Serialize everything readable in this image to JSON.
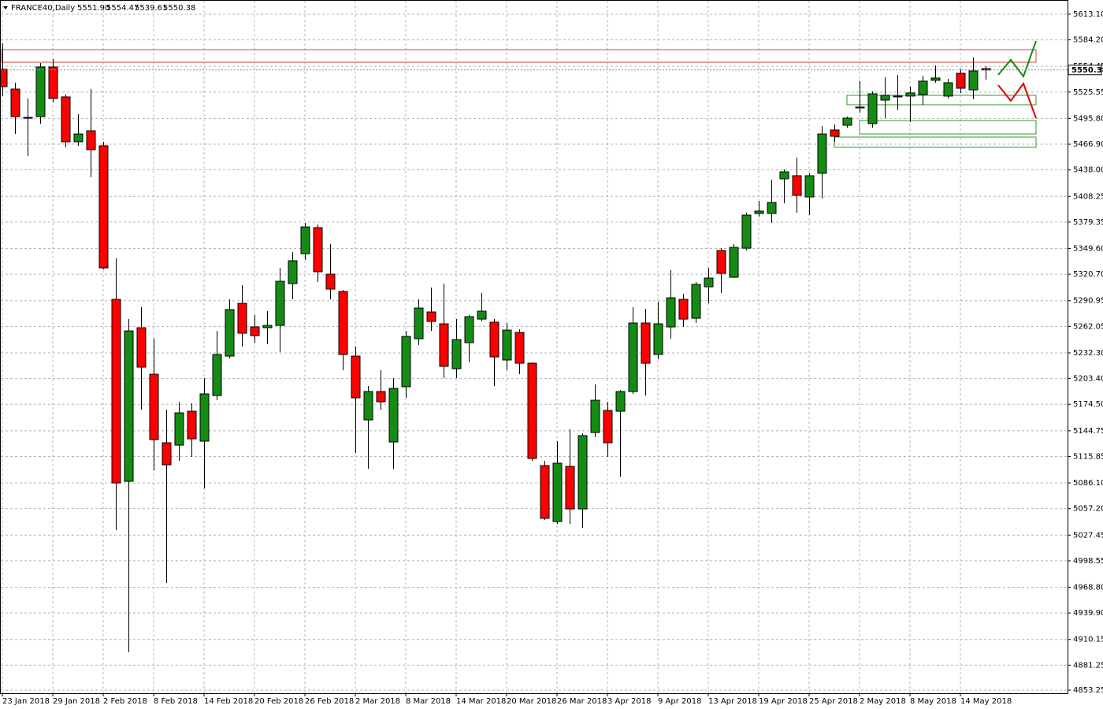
{
  "chart_data": {
    "type": "candlestick",
    "title": "FRANCE40,Daily",
    "header_ohlc": [
      "5551.90",
      "5554.47",
      "5539.61",
      "5550.38"
    ],
    "categories": [
      "23 Jan 2018",
      null,
      null,
      null,
      "29 Jan 2018",
      null,
      null,
      null,
      "2 Feb 2018",
      null,
      null,
      null,
      "8 Feb 2018",
      null,
      null,
      null,
      "14 Feb 2018",
      null,
      null,
      null,
      "20 Feb 2018",
      null,
      null,
      null,
      "26 Feb 2018",
      null,
      null,
      null,
      "2 Mar 2018",
      null,
      null,
      null,
      "8 Mar 2018",
      null,
      null,
      null,
      "14 Mar 2018",
      null,
      null,
      null,
      "20 Mar 2018",
      null,
      null,
      null,
      "26 Mar 2018",
      null,
      null,
      null,
      "3 Apr 2018",
      null,
      null,
      null,
      "9 Apr 2018",
      null,
      null,
      null,
      "13 Apr 2018",
      null,
      null,
      null,
      "19 Apr 2018",
      null,
      null,
      null,
      "25 Apr 2018",
      null,
      null,
      null,
      "2 May 2018",
      null,
      null,
      null,
      "8 May 2018",
      null,
      null,
      null,
      "14 May 2018",
      null,
      null
    ],
    "open": [
      5551.1,
      5528.9,
      5496.2,
      5497.9,
      5553.7,
      5520.1,
      5469.6,
      5482.0,
      5465.2,
      5292.5,
      5087.9,
      5260.6,
      5208.3,
      5131.3,
      5128.6,
      5166.7,
      5133.1,
      5184.4,
      5228.7,
      5288.0,
      5261.5,
      5260.6,
      5263.2,
      5310.2,
      5343.8,
      5373.1,
      5320.8,
      5301.3,
      5228.7,
      5157.0,
      5188.9,
      5132.2,
      5194.2,
      5248.2,
      5278.3,
      5265.0,
      5214.5,
      5243.8,
      5270.3,
      5266.8,
      5224.3,
      5255.3,
      5220.7,
      5105.6,
      5042.7,
      5104.7,
      5056.9,
      5142.8,
      5167.6,
      5166.7,
      5188.9,
      5265.9,
      5230.5,
      5261.5,
      5292.5,
      5271.2,
      5306.6,
      5347.4,
      5317.3,
      5350.0,
      5389.0,
      5389.0,
      5428.0,
      5431.5,
      5407.6,
      5434.2,
      5482.9,
      5488.2,
      5507.7,
      5490.0,
      5516.5,
      5520.1,
      5521.0,
      5522.7,
      5538.7,
      5521.0,
      5546.6,
      5528.0,
      5551.9
    ],
    "high": [
      5580.3,
      5536.0,
      5518.3,
      5558.2,
      5562.6,
      5522.7,
      5500.6,
      5528.9,
      5469.6,
      5338.5,
      5270.3,
      5283.6,
      5248.2,
      5168.5,
      5177.3,
      5175.6,
      5203.9,
      5257.0,
      5292.5,
      5308.4,
      5274.8,
      5279.2,
      5327.9,
      5345.6,
      5378.4,
      5376.6,
      5354.5,
      5303.1,
      5239.3,
      5195.1,
      5212.8,
      5203.9,
      5257.0,
      5292.5,
      5305.8,
      5310.2,
      5270.3,
      5274.8,
      5299.6,
      5270.3,
      5265.9,
      5258.8,
      5221.6,
      5110.9,
      5133.1,
      5146.3,
      5141.9,
      5196.8,
      5177.3,
      5190.6,
      5283.6,
      5281.8,
      5289.8,
      5325.2,
      5298.7,
      5312.0,
      5327.9,
      5350.0,
      5354.5,
      5389.9,
      5403.2,
      5427.1,
      5438.6,
      5451.9,
      5434.2,
      5487.3,
      5489.1,
      5497.9,
      5537.8,
      5526.3,
      5542.2,
      5544.9,
      5531.6,
      5544.0,
      5555.5,
      5540.4,
      5551.1,
      5564.4,
      5554.47
    ],
    "low": [
      5521.0,
      5478.4,
      5453.7,
      5490.0,
      5513.9,
      5463.4,
      5465.2,
      5429.7,
      5326.1,
      5033.0,
      4895.7,
      5168.5,
      5100.3,
      4973.7,
      5110.9,
      5115.4,
      5079.9,
      5179.1,
      5226.1,
      5239.3,
      5243.8,
      5242.0,
      5233.1,
      5292.5,
      5336.8,
      5312.0,
      5292.5,
      5212.8,
      5119.8,
      5102.1,
      5168.5,
      5102.1,
      5181.8,
      5241.1,
      5257.0,
      5203.9,
      5203.9,
      5221.6,
      5267.7,
      5195.1,
      5212.8,
      5208.3,
      5110.9,
      5044.5,
      5040.1,
      5040.1,
      5035.6,
      5137.5,
      5115.4,
      5093.2,
      5186.2,
      5184.4,
      5225.2,
      5248.2,
      5261.5,
      5265.9,
      5288.0,
      5299.6,
      5316.4,
      5347.4,
      5385.5,
      5378.4,
      5400.5,
      5389.9,
      5387.2,
      5405.8,
      5469.6,
      5485.5,
      5502.4,
      5485.5,
      5496.2,
      5505.0,
      5491.7,
      5511.2,
      5536.0,
      5518.3,
      5524.5,
      5517.4,
      5539.61
    ],
    "close": [
      5531.6,
      5497.9,
      5497.0,
      5553.7,
      5518.3,
      5469.6,
      5478.4,
      5460.7,
      5327.9,
      5086.1,
      5257.0,
      5216.3,
      5134.8,
      5106.5,
      5164.9,
      5135.7,
      5186.2,
      5230.5,
      5281.0,
      5254.4,
      5251.7,
      5263.2,
      5312.8,
      5335.9,
      5373.9,
      5323.5,
      5304.0,
      5230.5,
      5181.8,
      5188.9,
      5177.3,
      5192.4,
      5250.8,
      5282.7,
      5267.7,
      5217.2,
      5247.3,
      5273.0,
      5279.2,
      5227.8,
      5257.9,
      5220.7,
      5113.6,
      5046.3,
      5108.3,
      5056.9,
      5139.3,
      5179.1,
      5131.3,
      5188.9,
      5265.9,
      5220.7,
      5265.0,
      5294.2,
      5270.3,
      5309.3,
      5316.4,
      5321.7,
      5350.9,
      5387.2,
      5391.7,
      5401.4,
      5435.9,
      5409.4,
      5431.5,
      5478.4,
      5475.8,
      5496.2,
      5508.6,
      5523.6,
      5521.8,
      5521.0,
      5524.5,
      5537.8,
      5541.3,
      5536.0,
      5529.8,
      5549.3,
      5550.38
    ],
    "up_color": "#148c14",
    "down_color": "#ff0000",
    "ylim": [
      4849.7,
      5629.0
    ],
    "yticks": [
      {
        "value": 5613.1,
        "label": "5613.10"
      },
      {
        "value": 5584.2,
        "label": "5584.20"
      },
      {
        "value": 5554.45,
        "label": "5554.45"
      },
      {
        "value": 5525.55,
        "label": "5525.55"
      },
      {
        "value": 5495.8,
        "label": "5495.80"
      },
      {
        "value": 5466.9,
        "label": "5466.90"
      },
      {
        "value": 5438.0,
        "label": "5438.00"
      },
      {
        "value": 5408.25,
        "label": "5408.25"
      },
      {
        "value": 5379.35,
        "label": "5379.35"
      },
      {
        "value": 5349.6,
        "label": "5349.60"
      },
      {
        "value": 5320.7,
        "label": "5320.70"
      },
      {
        "value": 5290.95,
        "label": "5290.95"
      },
      {
        "value": 5262.05,
        "label": "5262.05"
      },
      {
        "value": 5232.3,
        "label": "5232.30"
      },
      {
        "value": 5203.4,
        "label": "5203.40"
      },
      {
        "value": 5174.5,
        "label": "5174.50"
      },
      {
        "value": 5144.75,
        "label": "5144.75"
      },
      {
        "value": 5115.85,
        "label": "5115.85"
      },
      {
        "value": 5086.1,
        "label": "5086.10"
      },
      {
        "value": 5057.2,
        "label": "5057.20"
      },
      {
        "value": 5027.45,
        "label": "5027.45"
      },
      {
        "value": 4998.55,
        "label": "4998.55"
      },
      {
        "value": 4968.8,
        "label": "4968.80"
      },
      {
        "value": 4939.9,
        "label": "4939.90"
      },
      {
        "value": 4910.15,
        "label": "4910.15"
      },
      {
        "value": 4881.25,
        "label": "4881.25"
      },
      {
        "value": 4853.25,
        "label": "4853.25"
      }
    ],
    "grid": true
  }
}
